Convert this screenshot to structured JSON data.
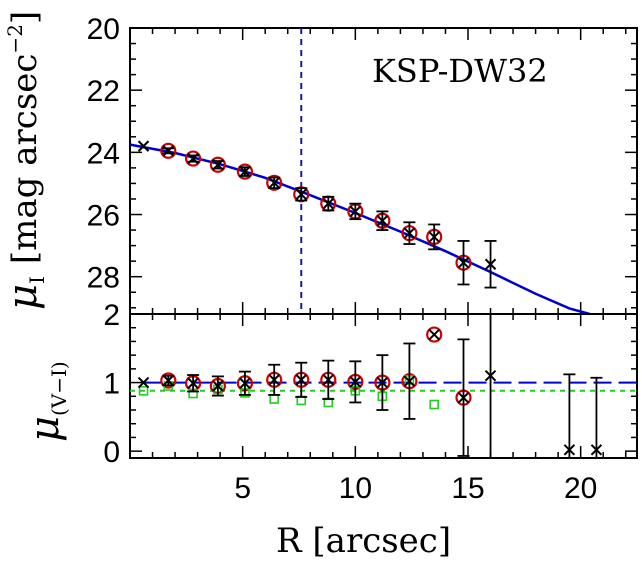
{
  "chart_data": [
    {
      "type": "scatter",
      "panel": "top",
      "title": "KSP-DW32",
      "ylabel_symbol": "μ",
      "ylabel_sub": "I",
      "ylabel_unit": "[mag arcsec",
      "ylabel_unit_exp": "−2",
      "ylabel_unit_end": "]",
      "xlim": [
        0,
        22.5
      ],
      "ylim": [
        29.2,
        20
      ],
      "y_ticks": [
        20,
        22,
        24,
        26,
        28
      ],
      "y_tick_labels": [
        "20",
        "22",
        "24",
        "26",
        "28"
      ],
      "vline_x": 7.6,
      "fit_curve": {
        "name": "fit",
        "color": "#0000cc",
        "x": [
          0.0,
          2.0,
          4.0,
          6.0,
          8.0,
          10.0,
          12.0,
          14.0,
          16.0,
          18.0,
          19.5,
          20.4
        ],
        "y": [
          23.75,
          24.02,
          24.38,
          24.82,
          25.38,
          25.95,
          26.55,
          27.18,
          27.85,
          28.55,
          29.02,
          29.3
        ]
      },
      "data_points": {
        "name": "measured",
        "marker": "cross",
        "x": [
          0.6,
          1.7,
          2.8,
          3.9,
          5.1,
          6.4,
          7.6,
          8.8,
          10.0,
          11.2,
          12.4,
          13.5,
          14.8,
          16.0
        ],
        "y": [
          23.8,
          23.95,
          24.2,
          24.4,
          24.62,
          24.98,
          25.35,
          25.65,
          25.9,
          26.2,
          26.6,
          26.72,
          27.55,
          27.6
        ],
        "err": [
          0.0,
          0.08,
          0.1,
          0.12,
          0.14,
          0.17,
          0.2,
          0.22,
          0.25,
          0.3,
          0.35,
          0.4,
          0.7,
          0.75
        ]
      },
      "circled_points": {
        "name": "selected",
        "marker": "open-circle",
        "color": "#cc0000",
        "x": [
          1.7,
          2.8,
          3.9,
          5.1,
          6.4,
          7.6,
          8.8,
          10.0,
          11.2,
          12.4,
          13.5,
          14.8
        ],
        "y": [
          23.95,
          24.2,
          24.4,
          24.62,
          24.98,
          25.35,
          25.65,
          25.9,
          26.2,
          26.6,
          26.72,
          27.55
        ]
      }
    },
    {
      "type": "scatter",
      "panel": "bottom",
      "xlabel": "R [arcsec]",
      "ylabel_symbol": "μ",
      "ylabel_sub": "(V−I)",
      "xlim": [
        0,
        22.5
      ],
      "ylim": [
        -0.1,
        2.0
      ],
      "x_ticks": [
        5,
        10,
        15,
        20
      ],
      "x_tick_labels": [
        "5",
        "10",
        "15",
        "20"
      ],
      "y_ticks": [
        0,
        1,
        2
      ],
      "y_tick_labels": [
        "0",
        "1",
        "2"
      ],
      "blue_dash_y": 1.0,
      "green_dash_y": 0.88,
      "data_points": {
        "name": "measured",
        "marker": "cross",
        "x": [
          0.6,
          1.7,
          2.8,
          3.9,
          5.1,
          6.4,
          7.6,
          8.8,
          10.0,
          11.2,
          12.4,
          13.5,
          14.8,
          16.0,
          19.5,
          20.7
        ],
        "y": [
          1.0,
          1.03,
          0.99,
          0.95,
          0.99,
          1.04,
          1.04,
          1.04,
          1.01,
          1.0,
          1.02,
          1.7,
          0.78,
          1.1,
          0.02,
          0.02
        ],
        "err": [
          0.0,
          0.07,
          0.12,
          0.14,
          0.17,
          0.22,
          0.25,
          0.28,
          0.3,
          0.4,
          0.55,
          0.0,
          0.85,
          1.3,
          1.1,
          1.05
        ]
      },
      "circled_points": {
        "name": "selected",
        "marker": "open-circle",
        "color": "#cc0000",
        "x": [
          1.7,
          2.8,
          3.9,
          5.1,
          6.4,
          7.6,
          8.8,
          10.0,
          11.2,
          12.4,
          13.5,
          14.8
        ],
        "y": [
          1.03,
          0.99,
          0.95,
          0.99,
          1.04,
          1.04,
          1.04,
          1.01,
          1.0,
          1.02,
          1.7,
          0.78
        ]
      },
      "green_squares": {
        "name": "green",
        "marker": "open-square",
        "color": "#22cc22",
        "x": [
          0.6,
          1.7,
          2.8,
          3.9,
          5.1,
          6.4,
          7.6,
          8.8,
          10.0,
          11.2,
          12.4,
          13.5
        ],
        "y": [
          0.88,
          0.95,
          0.84,
          0.9,
          0.85,
          0.76,
          0.74,
          0.71,
          0.88,
          0.8,
          1.04,
          0.68
        ]
      }
    }
  ]
}
